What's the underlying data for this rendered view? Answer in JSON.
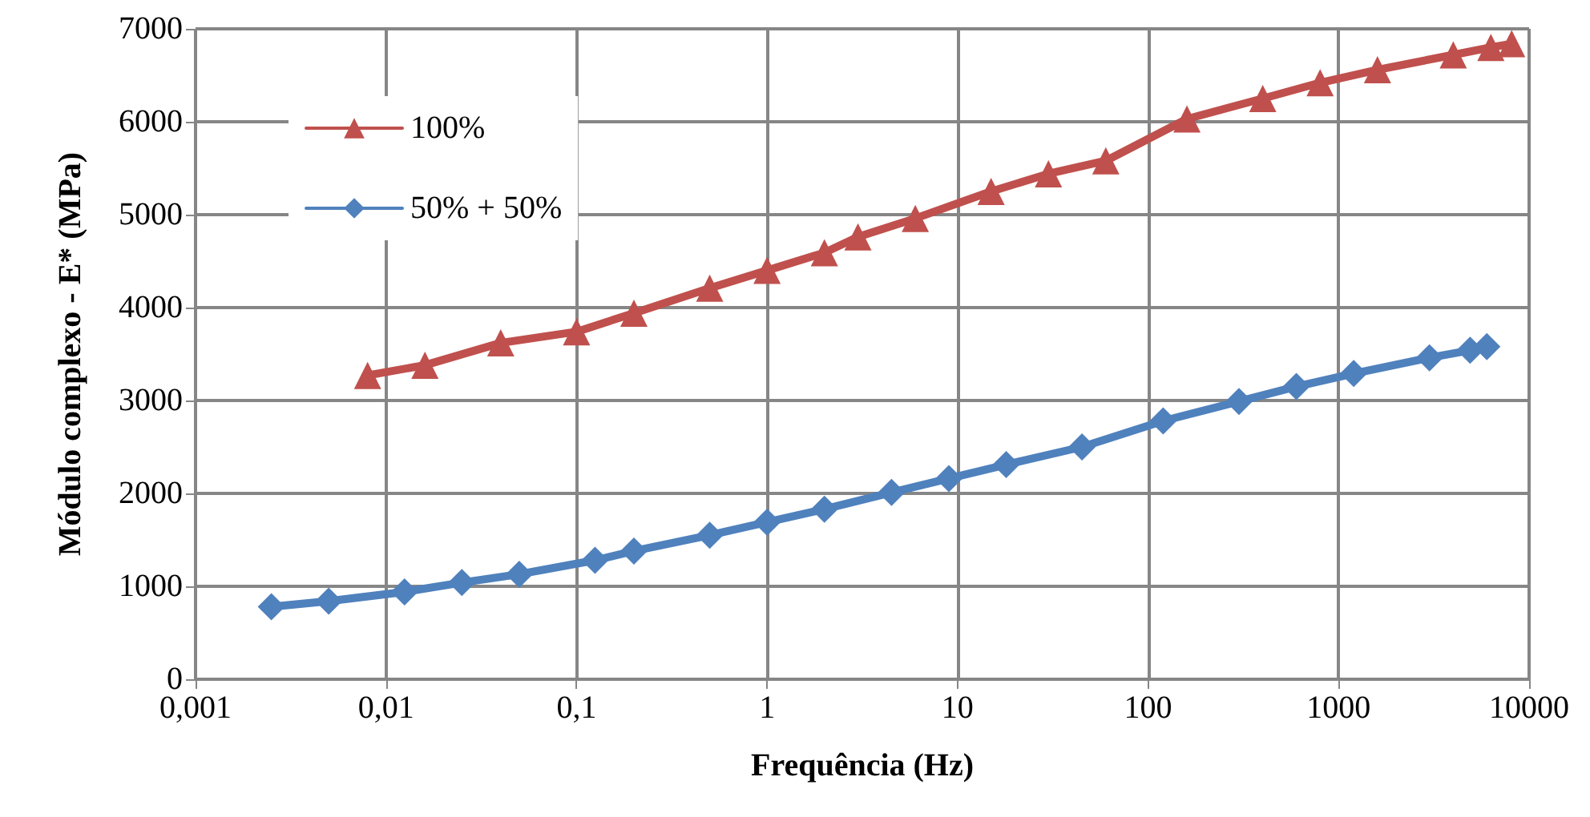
{
  "chart_data": {
    "type": "line",
    "xlabel": "Frequência (Hz)",
    "ylabel": "Módulo complexo - E* (MPa)",
    "log": "x",
    "grid": true,
    "legend": "top left",
    "line_style": "solid",
    "xlim": [
      0.001,
      10000
    ],
    "xticks": [
      {
        "value": 0.001,
        "label": "0,001"
      },
      {
        "value": 0.01,
        "label": "0,01"
      },
      {
        "value": 0.1,
        "label": "0,1"
      },
      1,
      10,
      100,
      1000,
      10000
    ],
    "ylim": [
      0,
      7000
    ],
    "yticks": [
      0,
      1000,
      2000,
      3000,
      4000,
      5000,
      6000,
      7000
    ],
    "series": [
      {
        "name": "100%",
        "color": "#c0504d",
        "marker": "triangle",
        "x": [
          0.008,
          0.016,
          0.04,
          0.1,
          0.2,
          0.5,
          1,
          2,
          3,
          6,
          15,
          30,
          60,
          160,
          400,
          800,
          1600,
          4000,
          6300,
          8100
        ],
        "values": [
          3270,
          3380,
          3620,
          3740,
          3940,
          4210,
          4400,
          4590,
          4760,
          4960,
          5250,
          5440,
          5580,
          6030,
          6250,
          6420,
          6560,
          6720,
          6800,
          6840
        ]
      },
      {
        "name": "50% + 50%",
        "color": "#4f81bd",
        "marker": "diamond",
        "x": [
          0.0025,
          0.005,
          0.0125,
          0.025,
          0.05,
          0.125,
          0.2,
          0.5,
          1,
          2,
          4.5,
          9,
          18,
          45,
          120,
          300,
          600,
          1200,
          3000,
          4900,
          6000
        ],
        "values": [
          780,
          840,
          940,
          1040,
          1130,
          1280,
          1380,
          1550,
          1690,
          1830,
          2010,
          2160,
          2310,
          2500,
          2780,
          2990,
          3150,
          3290,
          3460,
          3540,
          3580
        ]
      }
    ]
  }
}
